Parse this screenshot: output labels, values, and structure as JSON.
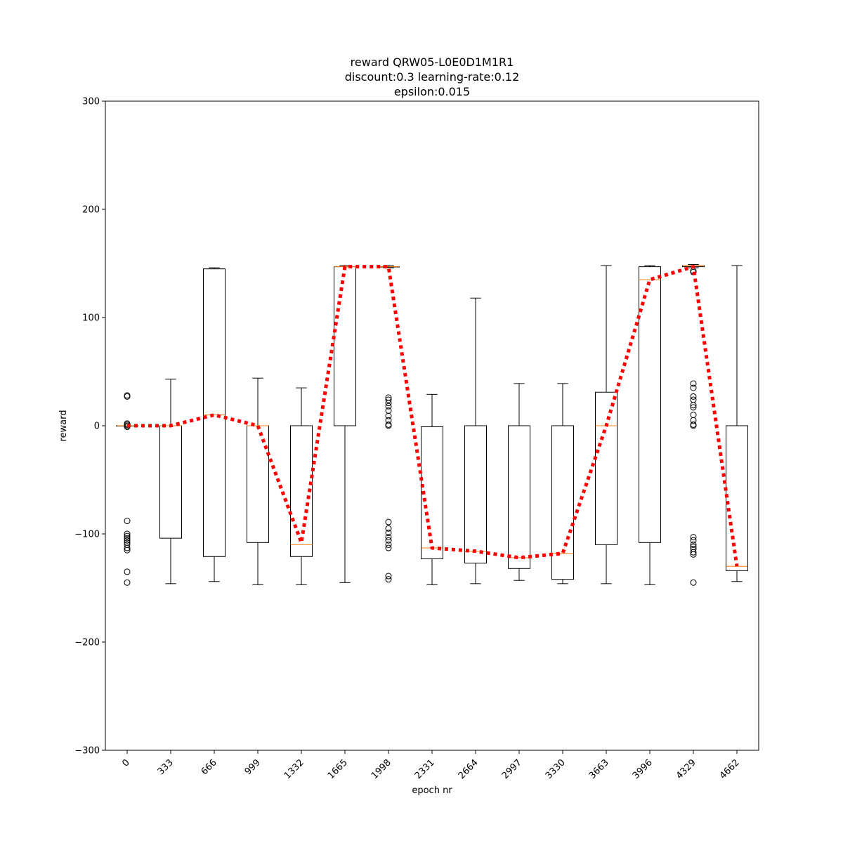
{
  "chart_data": {
    "type": "box",
    "title_lines": [
      "reward QRW05-L0E0D1M1R1",
      "discount:0.3 learning-rate:0.12",
      "epsilon:0.015"
    ],
    "xlabel": "epoch nr",
    "ylabel": "reward",
    "ylim": [
      -300,
      300
    ],
    "yticks": [
      -300,
      -200,
      -100,
      0,
      100,
      200,
      300
    ],
    "categories": [
      "0",
      "333",
      "666",
      "999",
      "1332",
      "1665",
      "1998",
      "2331",
      "2664",
      "2997",
      "3330",
      "3663",
      "3996",
      "4329",
      "4662"
    ],
    "boxes": [
      {
        "whislo": 0,
        "q1": 0,
        "med": 0,
        "q3": 0,
        "whishi": 0,
        "fliers": [
          28,
          27,
          2,
          1,
          0,
          -1,
          -88,
          -100,
          -102,
          -104,
          -106,
          -108,
          -110,
          -113,
          -115,
          -135,
          -145
        ]
      },
      {
        "whislo": -146,
        "q1": -104,
        "med": 0,
        "q3": 0,
        "whishi": 43,
        "fliers": []
      },
      {
        "whislo": -144,
        "q1": -121,
        "med": 10,
        "q3": 145,
        "whishi": 146,
        "fliers": []
      },
      {
        "whislo": -147,
        "q1": -108,
        "med": 0,
        "q3": 0,
        "whishi": 44,
        "fliers": []
      },
      {
        "whislo": -147,
        "q1": -121,
        "med": -110,
        "q3": 0,
        "whishi": 35,
        "fliers": []
      },
      {
        "whislo": -145,
        "q1": 0,
        "med": 147,
        "q3": 147,
        "whishi": 148,
        "fliers": []
      },
      {
        "whislo": 146,
        "q1": 147,
        "med": 147,
        "q3": 147,
        "whishi": 148,
        "fliers": [
          26,
          24,
          21,
          18,
          14,
          9,
          5,
          1,
          0,
          -89,
          -95,
          -99,
          -103,
          -106,
          -110,
          -113,
          -139,
          -142
        ]
      },
      {
        "whislo": -147,
        "q1": -123,
        "med": -113,
        "q3": -1,
        "whishi": 29,
        "fliers": []
      },
      {
        "whislo": -146,
        "q1": -127,
        "med": -116,
        "q3": 0,
        "whishi": 118,
        "fliers": []
      },
      {
        "whislo": -143,
        "q1": -132,
        "med": -122,
        "q3": 0,
        "whishi": 39,
        "fliers": []
      },
      {
        "whislo": -146,
        "q1": -142,
        "med": -118,
        "q3": 0,
        "whishi": 39,
        "fliers": []
      },
      {
        "whislo": -146,
        "q1": -110,
        "med": 0,
        "q3": 31,
        "whishi": 148,
        "fliers": []
      },
      {
        "whislo": -147,
        "q1": -108,
        "med": 135,
        "q3": 147,
        "whishi": 148,
        "fliers": []
      },
      {
        "whislo": 146,
        "q1": 147,
        "med": 148,
        "q3": 148,
        "whishi": 149,
        "fliers": [
          39,
          35,
          27,
          24,
          19,
          17,
          10,
          5,
          1,
          0,
          -103,
          -106,
          -110,
          -112,
          -114,
          -117,
          -119,
          -145,
          143,
          142
        ]
      },
      {
        "whislo": -144,
        "q1": -134,
        "med": -130,
        "q3": 0,
        "whishi": 148,
        "fliers": []
      }
    ],
    "mean_series": [
      0,
      0,
      10,
      0,
      -108,
      147,
      147,
      -113,
      -116,
      -122,
      -118,
      0,
      135,
      147,
      -130
    ],
    "colors": {
      "box": "#000000",
      "median": "#ff7f0e",
      "mean_line": "#ff0000",
      "background": "#ffffff"
    }
  }
}
